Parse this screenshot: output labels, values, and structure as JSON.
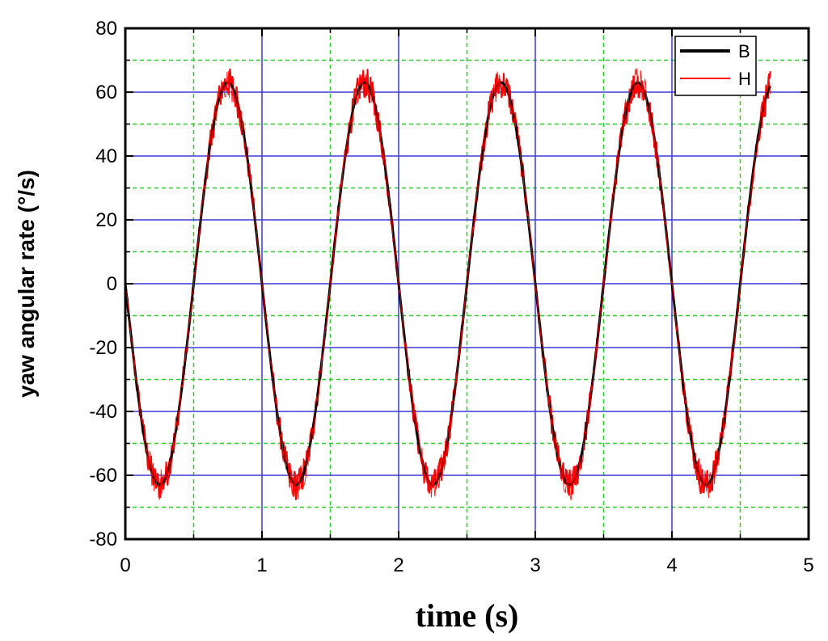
{
  "chart_data": {
    "type": "line",
    "xlabel": "time (s)",
    "ylabel": "yaw angular rate (°/s)",
    "xlim": [
      0,
      5
    ],
    "ylim": [
      -80,
      80
    ],
    "xticks": [
      0,
      1,
      2,
      3,
      4,
      5
    ],
    "yticks": [
      80,
      60,
      40,
      20,
      0,
      -20,
      -40,
      -60,
      -80
    ],
    "major_grid_color": "#3b3bd6",
    "minor_grid_color": "#2ecc2e",
    "legend_position": "top-right",
    "series": [
      {
        "name": "B",
        "color": "#000000",
        "amplitude": 63,
        "period": 1.0,
        "phase_sign": -1,
        "x_end": 4.72,
        "noise": 0
      },
      {
        "name": "H",
        "color": "#ff0000",
        "amplitude": 63,
        "period": 1.0,
        "phase_sign": -1,
        "x_end": 4.72,
        "noise": 2.5
      }
    ]
  }
}
